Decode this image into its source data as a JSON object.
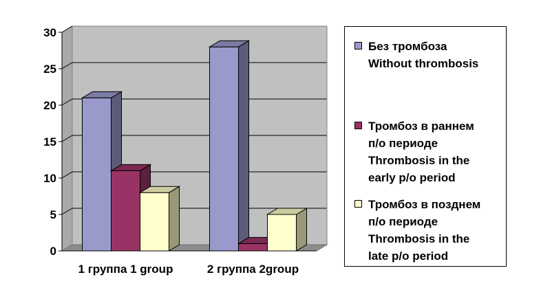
{
  "chart_data": {
    "type": "bar",
    "style": "3d-clustered-column",
    "categories": [
      "1 группа 1 group",
      "2 группа 2group"
    ],
    "series": [
      {
        "name": "Без тромбоза Without thrombosis",
        "label_lines": [
          "Без тромбоза",
          "Without thrombosis"
        ],
        "color": "#9999cc",
        "values": [
          21,
          28
        ]
      },
      {
        "name": "Тромбоз в раннем п/о периоде Thrombosis in the early p/o period",
        "label_lines": [
          "Тромбоз в раннем",
          "п/о периоде",
          "Thrombosis in the",
          "early p/o period"
        ],
        "color": "#993366",
        "values": [
          11,
          1
        ]
      },
      {
        "name": "Тромбоз в позднем п/о периоде Thrombosis in the late p/o period",
        "label_lines": [
          "Тромбоз в позднем",
          "п/о периоде",
          "Thrombosis in the",
          "late p/o period"
        ],
        "color": "#ffffcc",
        "values": [
          8,
          5
        ]
      }
    ],
    "yticks": [
      0,
      5,
      10,
      15,
      20,
      25,
      30
    ],
    "ylim": [
      0,
      30
    ],
    "grid": true,
    "wall_color": "#c0c0c0",
    "legend_position": "right",
    "title": "",
    "xlabel": "",
    "ylabel": ""
  }
}
